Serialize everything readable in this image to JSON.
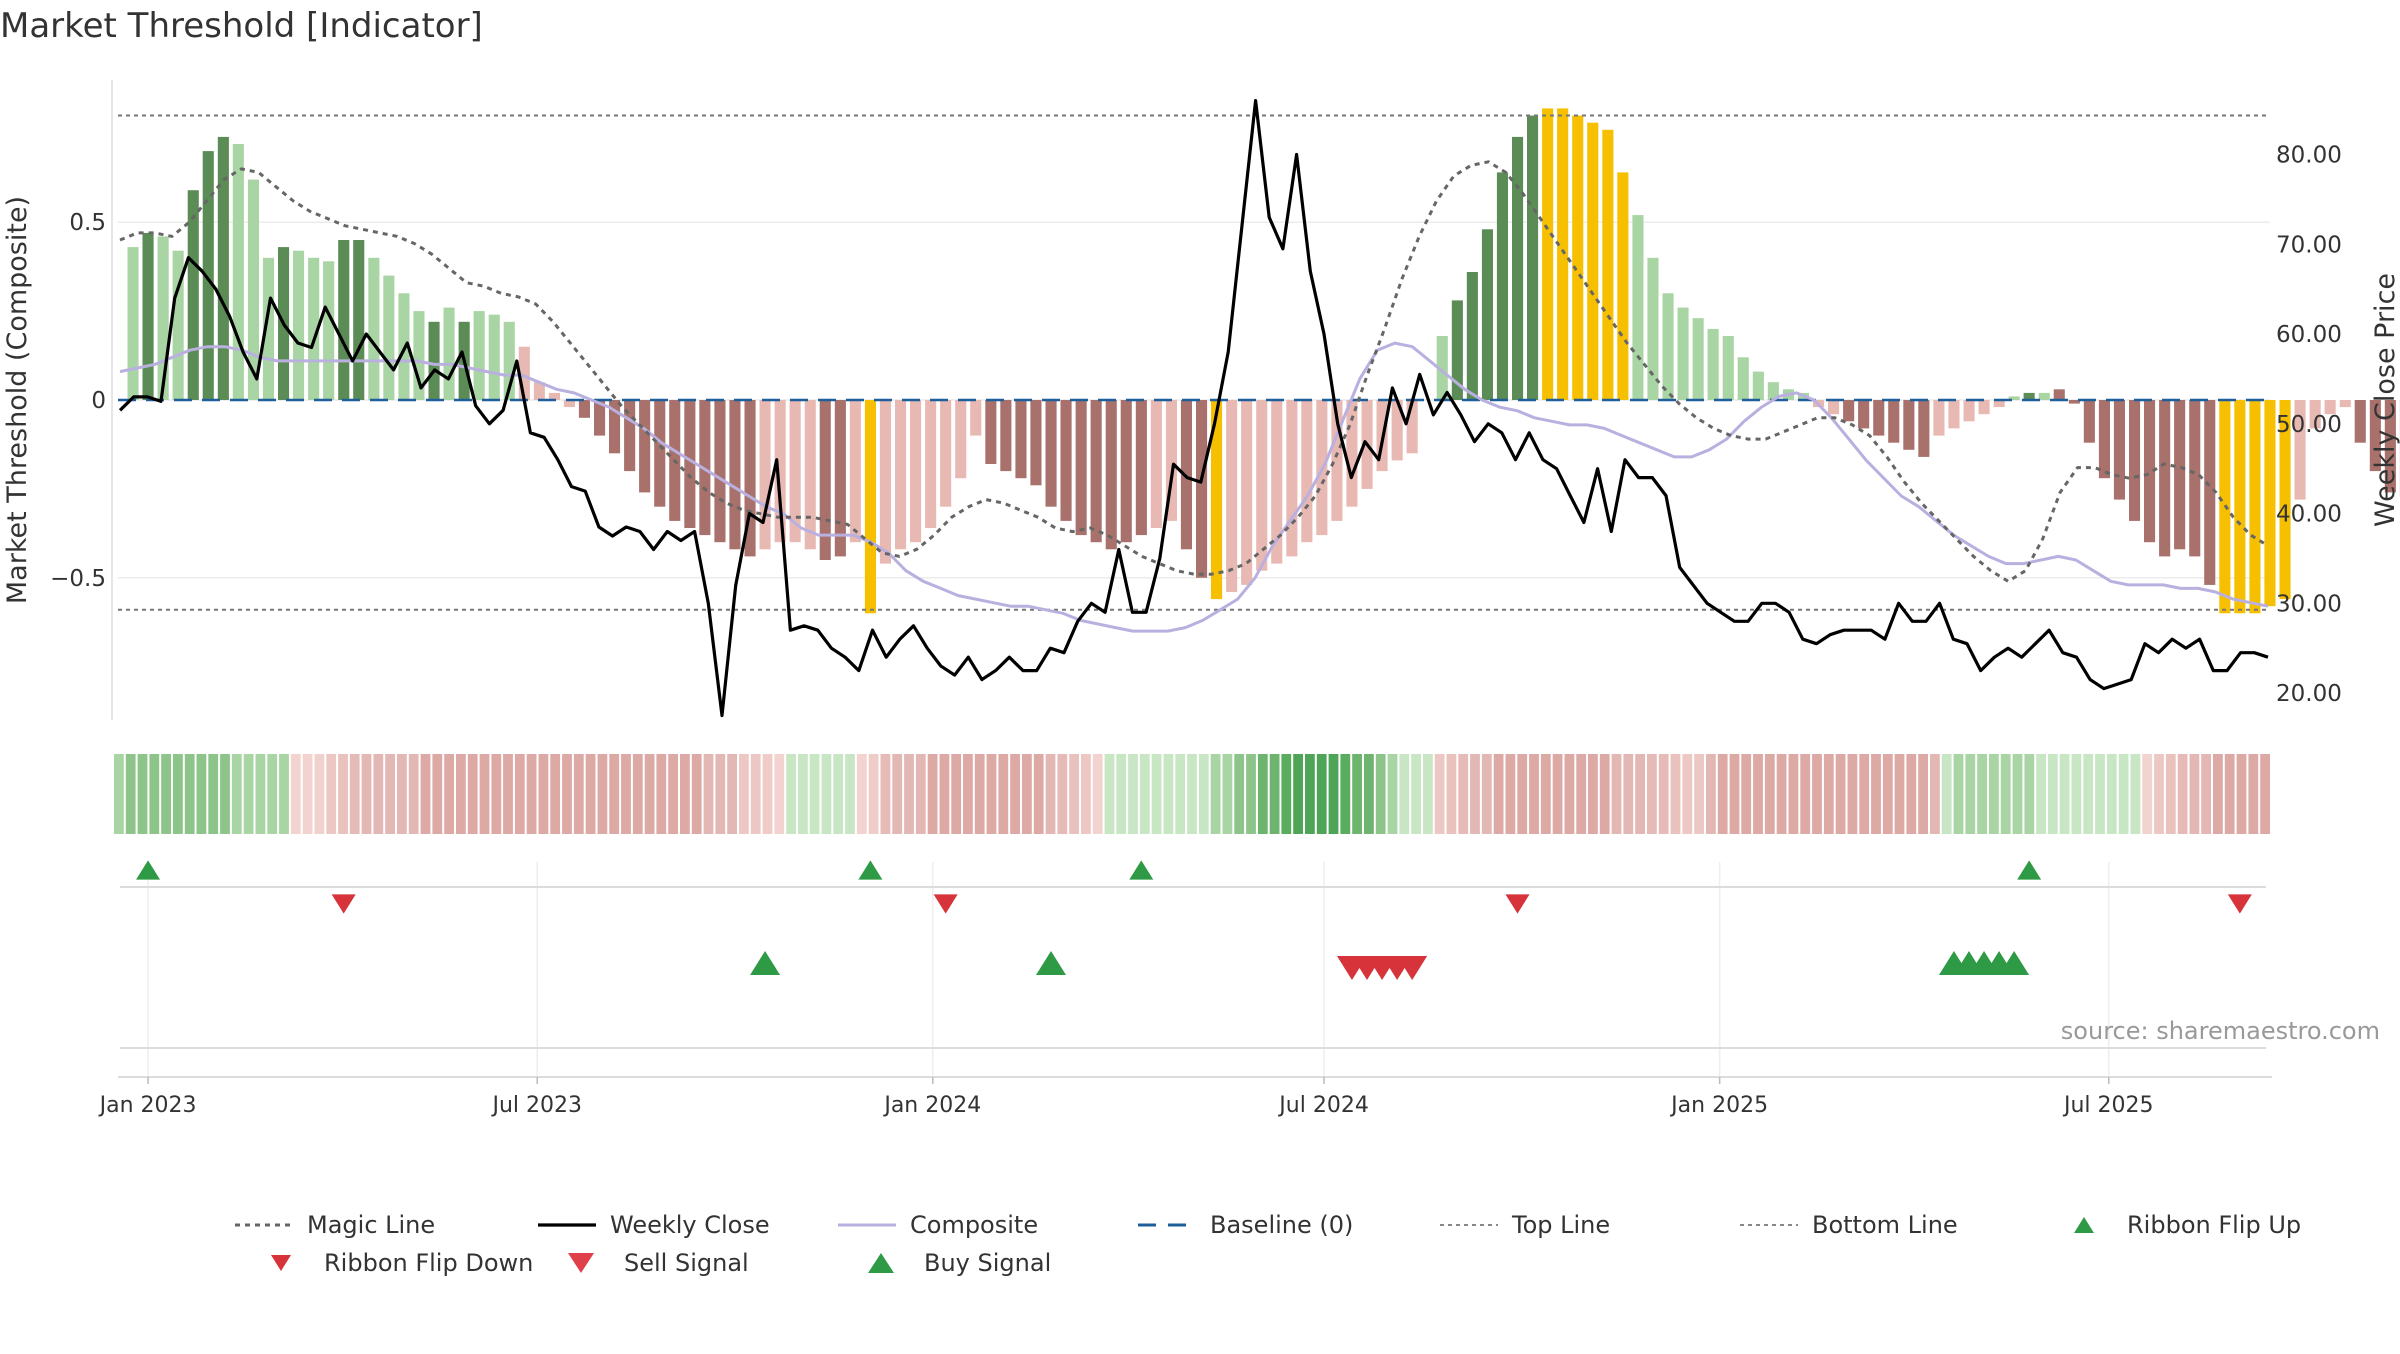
{
  "title": "Market Threshold [Indicator]",
  "source": "source: sharemaestro.com",
  "colors": {
    "bull_strong": "#5b8c55",
    "bull_weak": "#a9d4a3",
    "bear_strong": "#a8716b",
    "bear_weak": "#e8b9b3",
    "extreme": "#f6c000",
    "weekly_close": "#000000",
    "magic_line": "#666666",
    "composite": "#b9b0e0",
    "baseline": "#1f5f99",
    "up_marker": "#2f9a45",
    "down_marker": "#d7333b"
  },
  "chart_data": {
    "type": "bar",
    "xaxis": {
      "ticks": [
        "Jan 2023",
        "Jul 2023",
        "Jan 2024",
        "Jul 2024",
        "Jan 2025",
        "Jul 2025"
      ],
      "tick_dates": [
        "2023-01-01",
        "2023-07-01",
        "2024-01-01",
        "2024-07-01",
        "2025-01-01",
        "2025-07-01"
      ],
      "range": [
        "2022-12-18",
        "2025-09-14"
      ]
    },
    "left_axis": {
      "label": "Market Threshold (Composite)",
      "range": [
        -0.9,
        0.9
      ],
      "ticks": [
        0.5,
        0,
        -0.5
      ],
      "tick_labels": [
        "0.5",
        "0",
        "−0.5"
      ]
    },
    "right_axis": {
      "label": "Weekly Close Price",
      "range": [
        17.0,
        88.3
      ],
      "ticks": [
        20,
        30,
        40,
        50,
        60,
        70,
        80
      ],
      "tick_labels": [
        "20.00",
        "30.00",
        "40.00",
        "50.00",
        "60.00",
        "70.00",
        "80.00"
      ]
    },
    "reference_lines": {
      "top_line": 0.8,
      "bottom_line": -0.59,
      "baseline": 0
    },
    "legend": {
      "placement": "bottom",
      "items": [
        {
          "label": "Magic Line",
          "kind": "dotted"
        },
        {
          "label": "Weekly Close",
          "kind": "solid-black"
        },
        {
          "label": "Composite",
          "kind": "solid-lavender"
        },
        {
          "label": "Baseline (0)",
          "kind": "dashed-blue"
        },
        {
          "label": "Top Line",
          "kind": "dotted-gray"
        },
        {
          "label": "Bottom Line",
          "kind": "dotted-gray"
        },
        {
          "label": "Ribbon Flip Up",
          "kind": "triangle-up"
        },
        {
          "label": "Ribbon Flip Down",
          "kind": "triangle-down"
        },
        {
          "label": "Sell Signal",
          "kind": "triangle-down-red"
        },
        {
          "label": "Buy Signal",
          "kind": "triangle-up-green"
        }
      ]
    },
    "indicator_bars": {
      "start_date": "2022-12-25",
      "step_days": 7,
      "values": [
        0.43,
        0.47,
        0.46,
        0.42,
        0.59,
        0.7,
        0.74,
        0.72,
        0.62,
        0.4,
        0.43,
        0.42,
        0.4,
        0.39,
        0.45,
        0.45,
        0.4,
        0.35,
        0.3,
        0.25,
        0.22,
        0.26,
        0.22,
        0.25,
        0.24,
        0.22,
        0.15,
        0.05,
        0.02,
        -0.02,
        -0.05,
        -0.1,
        -0.15,
        -0.2,
        -0.26,
        -0.3,
        -0.34,
        -0.36,
        -0.38,
        -0.4,
        -0.42,
        -0.44,
        -0.42,
        -0.4,
        -0.4,
        -0.42,
        -0.45,
        -0.44,
        -0.4,
        -0.6,
        -0.46,
        -0.42,
        -0.4,
        -0.36,
        -0.3,
        -0.22,
        -0.1,
        -0.18,
        -0.2,
        -0.22,
        -0.24,
        -0.3,
        -0.34,
        -0.38,
        -0.4,
        -0.42,
        -0.4,
        -0.38,
        -0.36,
        -0.34,
        -0.42,
        -0.5,
        -0.56,
        -0.54,
        -0.52,
        -0.48,
        -0.46,
        -0.44,
        -0.4,
        -0.38,
        -0.34,
        -0.3,
        -0.25,
        -0.2,
        -0.17,
        -0.15,
        0.0,
        0.18,
        0.28,
        0.36,
        0.48,
        0.64,
        0.74,
        0.8,
        0.82,
        0.82,
        0.8,
        0.78,
        0.76,
        0.64,
        0.52,
        0.4,
        0.3,
        0.26,
        0.23,
        0.2,
        0.18,
        0.12,
        0.08,
        0.05,
        0.03,
        0.02,
        -0.02,
        -0.04,
        -0.06,
        -0.08,
        -0.1,
        -0.12,
        -0.14,
        -0.16,
        -0.1,
        -0.08,
        -0.06,
        -0.04,
        -0.02,
        0.01,
        0.02,
        0.02,
        0.03,
        -0.01,
        -0.12,
        -0.22,
        -0.28,
        -0.34,
        -0.4,
        -0.44,
        -0.42,
        -0.44,
        -0.52,
        -0.6,
        -0.6,
        -0.6,
        -0.58,
        -0.56,
        -0.28,
        -0.08,
        -0.04,
        -0.02,
        -0.12,
        -0.2,
        -0.26,
        -0.27,
        -0.22,
        -0.2,
        -0.18,
        -0.16,
        -0.14,
        -0.26,
        -0.33,
        -0.46,
        -0.55,
        -0.54,
        -0.51
      ],
      "note_colors": "strong/weak, bull/bear and extreme classes per bar",
      "classes": [
        "bw",
        "bs",
        "bw",
        "bw",
        "bs",
        "bs",
        "bs",
        "bw",
        "bw",
        "bw",
        "bs",
        "bw",
        "bw",
        "bw",
        "bs",
        "bs",
        "bw",
        "bw",
        "bw",
        "bw",
        "bs",
        "bw",
        "bs",
        "bw",
        "bw",
        "bw",
        "rw",
        "rw",
        "rw",
        "rw",
        "rs",
        "rs",
        "rs",
        "rs",
        "rs",
        "rs",
        "rs",
        "rs",
        "rs",
        "rs",
        "rs",
        "rs",
        "rw",
        "rw",
        "rw",
        "rw",
        "rs",
        "rs",
        "rw",
        "ex",
        "rw",
        "rw",
        "rw",
        "rw",
        "rw",
        "rw",
        "rw",
        "rs",
        "rs",
        "rs",
        "rs",
        "rs",
        "rs",
        "rs",
        "rs",
        "rs",
        "rs",
        "rs",
        "rw",
        "rw",
        "rs",
        "rs",
        "ex",
        "rw",
        "rw",
        "rw",
        "rw",
        "rw",
        "rw",
        "rw",
        "rw",
        "rw",
        "rw",
        "rw",
        "rw",
        "rw",
        "rw",
        "bw",
        "bs",
        "bs",
        "bs",
        "bs",
        "bs",
        "bs",
        "ex",
        "ex",
        "ex",
        "ex",
        "ex",
        "ex",
        "bw",
        "bw",
        "bw",
        "bw",
        "bw",
        "bw",
        "bw",
        "bw",
        "bw",
        "bw",
        "bw",
        "bw",
        "rw",
        "rw",
        "rs",
        "rs",
        "rs",
        "rs",
        "rs",
        "rs",
        "rw",
        "rw",
        "rw",
        "rw",
        "rw",
        "bw",
        "bs",
        "bw",
        "rs",
        "rs",
        "rs",
        "rs",
        "rs",
        "rs",
        "rs",
        "rs",
        "rs",
        "rs",
        "rs",
        "ex",
        "ex",
        "ex",
        "ex",
        "ex",
        "rw",
        "rw",
        "rw",
        "rw",
        "rs",
        "rs",
        "rs",
        "rs",
        "rs",
        "rw",
        "rw",
        "rw",
        "rw",
        "rs",
        "rs",
        "rs",
        "rs",
        "rs",
        "rw"
      ]
    },
    "weekly_close": {
      "values": [
        51.5,
        53,
        53,
        52.5,
        64,
        68.5,
        67,
        65,
        62,
        58,
        55,
        64,
        61,
        59,
        58.5,
        63,
        60,
        57,
        60,
        58,
        56,
        59,
        54,
        56,
        55,
        58,
        52,
        50,
        51.5,
        57,
        49,
        48.5,
        46,
        43,
        42.5,
        38.5,
        37.5,
        38.5,
        38,
        36,
        38,
        37,
        38,
        30,
        17.5,
        32,
        40,
        39,
        46,
        27,
        27.5,
        27,
        25,
        24,
        22.5,
        27,
        24,
        26,
        27.5,
        25,
        23,
        22,
        24,
        21.5,
        22.5,
        24,
        22.5,
        22.5,
        25,
        24.5,
        28,
        30,
        29,
        36,
        29,
        29,
        35,
        45.5,
        44,
        43.5,
        50,
        58,
        72,
        86,
        73,
        69.5,
        80,
        67,
        60,
        50,
        44,
        48,
        46,
        54,
        50,
        55.5,
        51,
        53.5,
        51,
        48,
        50,
        49,
        46,
        49,
        46,
        45,
        42,
        39,
        45,
        38,
        46,
        44,
        44,
        42,
        34,
        32,
        30,
        29,
        28,
        28,
        30,
        30,
        29,
        26,
        25.5,
        26.5,
        27,
        27,
        27,
        26,
        30,
        28,
        28,
        30,
        26,
        25.5,
        22.5,
        24,
        25,
        24,
        25.5,
        27,
        24.5,
        24,
        21.5,
        20.5,
        21,
        21.5,
        25.5,
        24.5,
        26,
        25,
        26,
        22.5,
        22.5,
        24.5,
        24.5,
        24
      ],
      "note": "weekly close price series (right axis units)"
    },
    "magic_line": {
      "values": [
        0.45,
        0.47,
        0.47,
        0.46,
        0.5,
        0.56,
        0.62,
        0.65,
        0.64,
        0.6,
        0.56,
        0.53,
        0.51,
        0.49,
        0.48,
        0.47,
        0.46,
        0.44,
        0.41,
        0.37,
        0.33,
        0.32,
        0.3,
        0.29,
        0.27,
        0.22,
        0.16,
        0.1,
        0.04,
        -0.02,
        -0.07,
        -0.12,
        -0.17,
        -0.22,
        -0.26,
        -0.29,
        -0.31,
        -0.32,
        -0.33,
        -0.33,
        -0.33,
        -0.34,
        -0.35,
        -0.39,
        -0.43,
        -0.44,
        -0.42,
        -0.38,
        -0.33,
        -0.3,
        -0.28,
        -0.29,
        -0.31,
        -0.33,
        -0.36,
        -0.37,
        -0.36,
        -0.38,
        -0.41,
        -0.44,
        -0.46,
        -0.48,
        -0.49,
        -0.49,
        -0.48,
        -0.46,
        -0.42,
        -0.38,
        -0.33,
        -0.27,
        -0.18,
        -0.07,
        0.07,
        0.2,
        0.34,
        0.46,
        0.56,
        0.63,
        0.66,
        0.67,
        0.64,
        0.58,
        0.51,
        0.44,
        0.37,
        0.3,
        0.23,
        0.16,
        0.1,
        0.04,
        -0.01,
        -0.05,
        -0.08,
        -0.1,
        -0.11,
        -0.11,
        -0.09,
        -0.07,
        -0.05,
        -0.05,
        -0.07,
        -0.1,
        -0.16,
        -0.23,
        -0.29,
        -0.34,
        -0.39,
        -0.44,
        -0.48,
        -0.51,
        -0.48,
        -0.39,
        -0.26,
        -0.19,
        -0.19,
        -0.21,
        -0.22,
        -0.21,
        -0.18,
        -0.19,
        -0.21,
        -0.26,
        -0.33,
        -0.38,
        -0.41
      ],
      "note": "magic line series (left axis units)"
    },
    "composite": {
      "values": [
        0.08,
        0.09,
        0.1,
        0.12,
        0.14,
        0.15,
        0.15,
        0.14,
        0.12,
        0.11,
        0.11,
        0.11,
        0.11,
        0.11,
        0.11,
        0.11,
        0.11,
        0.11,
        0.1,
        0.1,
        0.09,
        0.08,
        0.07,
        0.07,
        0.05,
        0.03,
        0.02,
        0.0,
        -0.02,
        -0.05,
        -0.08,
        -0.12,
        -0.15,
        -0.18,
        -0.21,
        -0.24,
        -0.27,
        -0.3,
        -0.32,
        -0.36,
        -0.38,
        -0.38,
        -0.38,
        -0.4,
        -0.43,
        -0.48,
        -0.51,
        -0.53,
        -0.55,
        -0.56,
        -0.57,
        -0.58,
        -0.58,
        -0.59,
        -0.6,
        -0.62,
        -0.63,
        -0.64,
        -0.65,
        -0.65,
        -0.65,
        -0.64,
        -0.62,
        -0.59,
        -0.56,
        -0.5,
        -0.41,
        -0.34,
        -0.27,
        -0.18,
        -0.06,
        0.06,
        0.14,
        0.16,
        0.15,
        0.11,
        0.07,
        0.03,
        0.0,
        -0.02,
        -0.03,
        -0.05,
        -0.06,
        -0.07,
        -0.07,
        -0.08,
        -0.1,
        -0.12,
        -0.14,
        -0.16,
        -0.16,
        -0.14,
        -0.11,
        -0.06,
        -0.02,
        0.01,
        0.02,
        0.0,
        -0.05,
        -0.11,
        -0.17,
        -0.22,
        -0.27,
        -0.3,
        -0.34,
        -0.38,
        -0.41,
        -0.44,
        -0.46,
        -0.46,
        -0.45,
        -0.44,
        -0.45,
        -0.48,
        -0.51,
        -0.52,
        -0.52,
        -0.52,
        -0.53,
        -0.53,
        -0.54,
        -0.56,
        -0.57,
        -0.58
      ],
      "note": "composite series (left axis units)"
    },
    "ribbon": {
      "colors": [
        "#a9d4a3",
        "#8cc48a",
        "#8cc48a",
        "#8cc48a",
        "#8cc48a",
        "#8cc48a",
        "#8cc48a",
        "#8cc48a",
        "#8cc48a",
        "#8cc48a",
        "#a9d4a3",
        "#a9d4a3",
        "#a9d4a3",
        "#a9d4a3",
        "#a9d4a3",
        "#f3d3d0",
        "#f3d3d0",
        "#f1d1ce",
        "#edc7c3",
        "#e9c1bd",
        "#e6bbb7",
        "#e3b7b3",
        "#e3b7b3",
        "#e3b7b3",
        "#e3b7b3",
        "#e3b7b3",
        "#dca9a4",
        "#dca9a4",
        "#dca9a4",
        "#dca9a4",
        "#dca9a4",
        "#dca9a4",
        "#dca9a4",
        "#dca9a4",
        "#dca9a4",
        "#dca9a4",
        "#dca9a4",
        "#dca9a4",
        "#dca9a4",
        "#dca9a4",
        "#dca9a4",
        "#dca9a4",
        "#dca9a4",
        "#dca9a4",
        "#dca9a4",
        "#dca9a4",
        "#dca9a4",
        "#dca9a4",
        "#dca9a4",
        "#dca9a4",
        "#e3b7b3",
        "#e3b7b3",
        "#e3b7b3",
        "#edc7c3",
        "#edc7c3",
        "#f0ccc8",
        "#f3d3d0",
        "#c8e5c4",
        "#c8e5c4",
        "#c8e5c4",
        "#c8e5c4",
        "#c8e5c4",
        "#c8e5c4",
        "#f3d3d0",
        "#f0ccc8",
        "#e6bbb7",
        "#e3b7b3",
        "#e3b7b3",
        "#e3b7b3",
        "#dca9a4",
        "#dca9a4",
        "#dca9a4",
        "#dca9a4",
        "#dca9a4",
        "#dca9a4",
        "#dca9a4",
        "#dca9a4",
        "#dca9a4",
        "#dca9a4",
        "#e3b7b3",
        "#e6bbb7",
        "#e9c1bd",
        "#edc7c3",
        "#f3d3d0",
        "#c8e5c4",
        "#c8e5c4",
        "#c8e5c4",
        "#c8e5c4",
        "#c8e5c4",
        "#c8e5c4",
        "#c8e5c4",
        "#c8e5c4",
        "#c8e5c4",
        "#a9d4a3",
        "#a9d4a3",
        "#8cc48a",
        "#8cc48a",
        "#6db46e",
        "#6db46e",
        "#5aac5f",
        "#4fa557",
        "#4fa557",
        "#4fa557",
        "#4fa557",
        "#5aac5f",
        "#6db46e",
        "#6db46e",
        "#8cc48a",
        "#a9d4a3",
        "#c8e5c4",
        "#c8e5c4",
        "#c8e5c4",
        "#edc7c3",
        "#e9c1bd",
        "#e6bbb7",
        "#e3b7b3",
        "#e3b7b3",
        "#dca9a4",
        "#dca9a4",
        "#dca9a4",
        "#dca9a4",
        "#dca9a4",
        "#dca9a4",
        "#dca9a4",
        "#dca9a4",
        "#dca9a4",
        "#dca9a4",
        "#e3b7b3",
        "#e3b7b3",
        "#e3b7b3",
        "#e6bbb7",
        "#e6bbb7",
        "#e9c1bd",
        "#edc7c3",
        "#edc7c3",
        "#e3b7b3",
        "#dca9a4",
        "#dca9a4",
        "#dca9a4",
        "#dca9a4",
        "#dca9a4",
        "#dca9a4",
        "#dca9a4",
        "#dca9a4",
        "#dca9a4",
        "#dca9a4",
        "#dca9a4",
        "#dca9a4",
        "#dca9a4",
        "#dca9a4",
        "#dca9a4",
        "#dca9a4",
        "#dca9a4",
        "#dca9a4",
        "#e3b7b3",
        "#c8e5c4",
        "#a9d4a3",
        "#a9d4a3",
        "#a9d4a3",
        "#a9d4a3",
        "#a9d4a3",
        "#a9d4a3",
        "#a9d4a3",
        "#c8e5c4",
        "#c8e5c4",
        "#c8e5c4",
        "#c8e5c4",
        "#c8e5c4",
        "#c8e5c4",
        "#c8e5c4",
        "#c8e5c4",
        "#c8e5c4",
        "#f3d3d0",
        "#edc7c3",
        "#e9c1bd",
        "#e6bbb7",
        "#e3b7b3",
        "#e3b7b3",
        "#dca9a4",
        "#dca9a4",
        "#dca9a4",
        "#dca9a4",
        "#dca9a4"
      ]
    },
    "ribbon_flip_up_dates": [
      "2022-12-25",
      "2023-11-26",
      "2024-03-31",
      "2025-05-18"
    ],
    "ribbon_flip_down_dates": [
      "2023-03-26",
      "2023-12-31",
      "2024-09-22",
      "2025-08-24"
    ],
    "buy_signal_dates": [
      "2023-10-08",
      "2024-02-18",
      "2025-04-13",
      "2025-04-20",
      "2025-04-27",
      "2025-05-04",
      "2025-05-11"
    ],
    "sell_signal_dates": [
      "2024-07-07",
      "2024-07-14",
      "2024-07-21",
      "2024-07-28",
      "2024-08-04"
    ]
  }
}
